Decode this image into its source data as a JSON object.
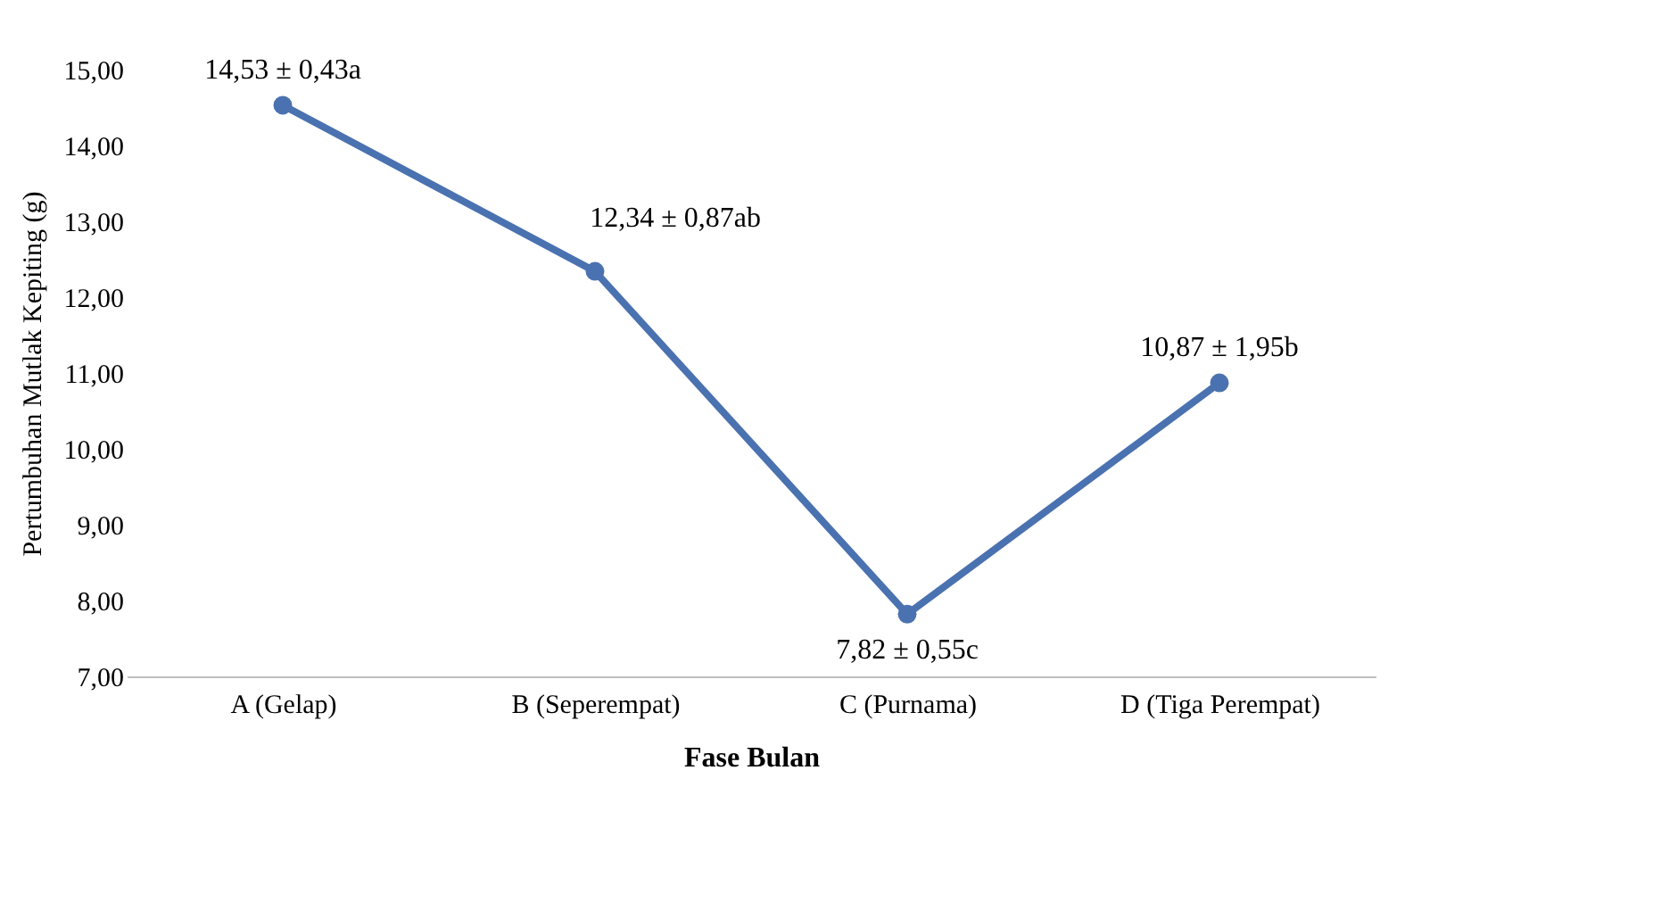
{
  "chart_data": {
    "type": "line",
    "xlabel": "Fase Bulan",
    "ylabel": "Pertumbuhan Mutlak Kepiting (g)",
    "categories": [
      "A (Gelap)",
      "B (Seperempat)",
      "C (Purnama)",
      "D (Tiga Perempat)"
    ],
    "series": [
      {
        "color": "#4a72b0",
        "values": [
          14.53,
          12.34,
          7.82,
          10.87
        ],
        "value_labels": [
          "14,53 ± 0,43a",
          "12,34 ± 0,87ab",
          "7,82 ± 0,55c",
          "10,87 ± 1,95b"
        ]
      }
    ],
    "ylim": [
      7,
      15
    ],
    "yticks": [
      {
        "value": 7,
        "label": "7,00"
      },
      {
        "value": 8,
        "label": "8,00"
      },
      {
        "value": 9,
        "label": "9,00"
      },
      {
        "value": 10,
        "label": "10,00"
      },
      {
        "value": 11,
        "label": "11,00"
      },
      {
        "value": 12,
        "label": "12,00"
      },
      {
        "value": 13,
        "label": "13,00"
      },
      {
        "value": 14,
        "label": "14,00"
      },
      {
        "value": 15,
        "label": "15,00"
      }
    ],
    "grid": false,
    "marker": "circle",
    "line_style": "solid"
  }
}
